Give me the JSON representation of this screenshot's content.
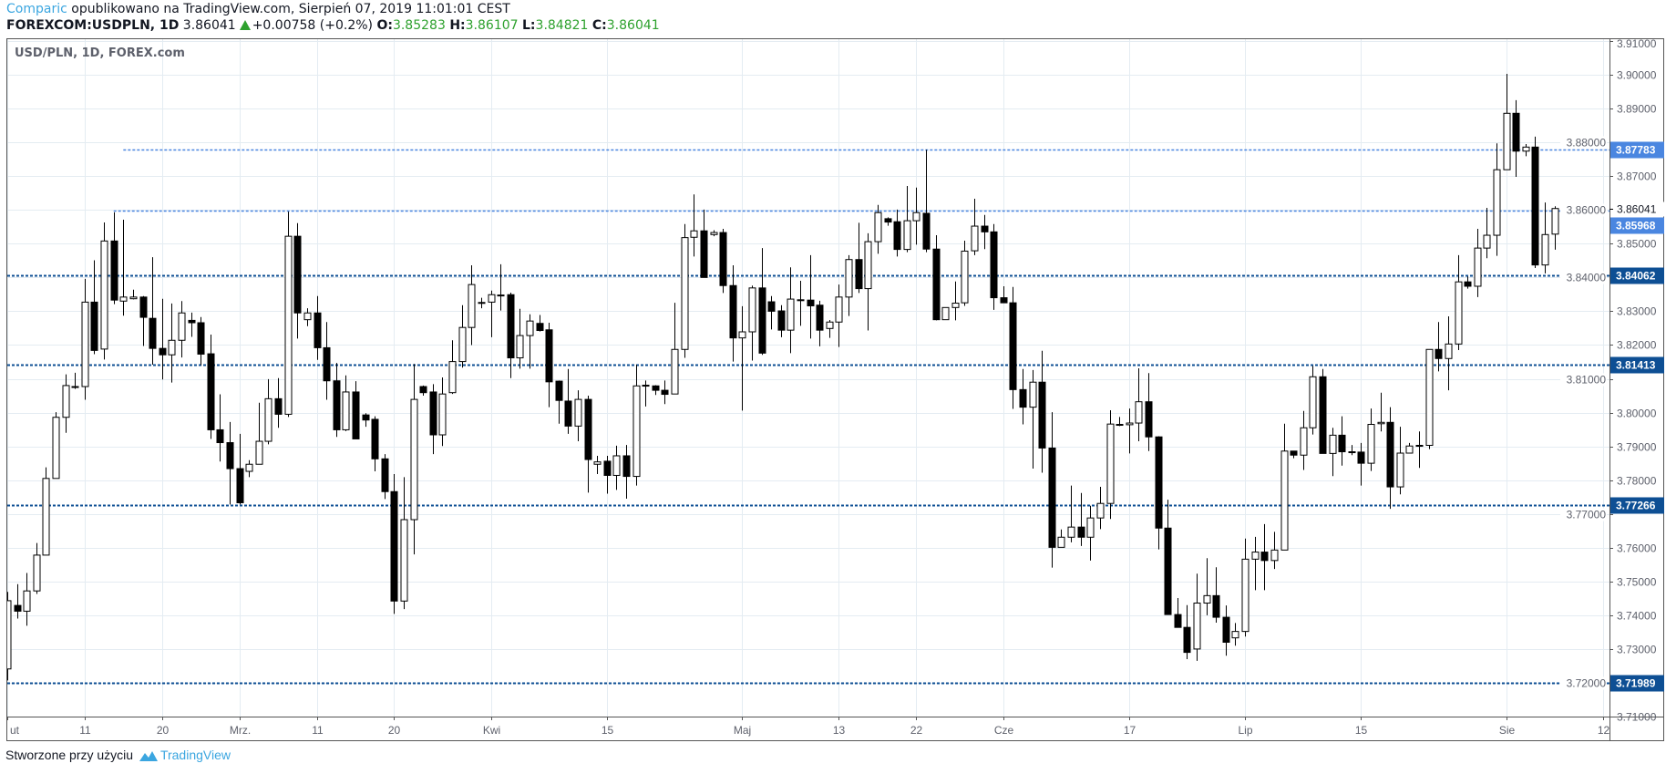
{
  "header": {
    "author": "Comparic",
    "published_text": "opublikowano na TradingView.com, Sierpień 07, 2019 11:01:01 CEST",
    "symbol": "FOREXCOM:USDPLN, 1D",
    "last": "3.86041",
    "change": "+0.00758 (+0.2%)",
    "open_label": "O:",
    "open": "3.85283",
    "high_label": "H:",
    "high": "3.86107",
    "low_label": "L:",
    "low": "3.84821",
    "close_label": "C:",
    "close": "3.86041"
  },
  "legend": "USD/PLN, 1D, FOREX.com",
  "footer": {
    "text": "Stworzone przy użyciu",
    "brand": "TradingView"
  },
  "colors": {
    "up_body": "#ffffff",
    "down_body": "#000000",
    "wick": "#000000",
    "grid": "#e4ecf2",
    "line_light": "#4a86e0",
    "line_dark": "#0e4f94",
    "value_green": "#2ea12e"
  },
  "chart_data": {
    "type": "candlestick",
    "title": "USD/PLN, 1D, FOREX.com",
    "ylim": [
      3.71,
      3.91
    ],
    "grid": true,
    "yticks": [
      "3.91000",
      "3.90000",
      "3.89000",
      "3.88000",
      "3.87000",
      "3.86000",
      "3.85000",
      "3.84000",
      "3.83000",
      "3.82000",
      "3.81000",
      "3.80000",
      "3.79000",
      "3.78000",
      "3.77000",
      "3.76000",
      "3.75000",
      "3.74000",
      "3.73000",
      "3.72000",
      "3.71000"
    ],
    "xticks": [
      {
        "label": "ut",
        "index": 0
      },
      {
        "label": "11",
        "index": 8
      },
      {
        "label": "20",
        "index": 16
      },
      {
        "label": "Mrz.",
        "index": 24
      },
      {
        "label": "11",
        "index": 32
      },
      {
        "label": "20",
        "index": 40
      },
      {
        "label": "Kwi",
        "index": 50
      },
      {
        "label": "15",
        "index": 62
      },
      {
        "label": "Maj",
        "index": 76
      },
      {
        "label": "13",
        "index": 86
      },
      {
        "label": "22",
        "index": 94
      },
      {
        "label": "Cze",
        "index": 103
      },
      {
        "label": "17",
        "index": 116
      },
      {
        "label": "Lip",
        "index": 128
      },
      {
        "label": "15",
        "index": 140
      },
      {
        "label": "Sie",
        "index": 155
      },
      {
        "label": "12",
        "index": 165
      }
    ],
    "horizontal_lines": [
      {
        "value": 3.87783,
        "label": "3.87783",
        "style": "light",
        "start_index": 12
      },
      {
        "value": 3.85968,
        "label": "3.85968",
        "style": "light",
        "start_index": 11
      },
      {
        "value": 3.84062,
        "label": "3.84062",
        "style": "dark",
        "start_index": 0
      },
      {
        "value": 3.81413,
        "label": "3.81413",
        "style": "dark",
        "start_index": 0
      },
      {
        "value": 3.77266,
        "label": "3.77266",
        "style": "dark",
        "start_index": 0
      },
      {
        "value": 3.71989,
        "label": "3.71989",
        "style": "dark",
        "start_index": 0
      }
    ],
    "last_price": {
      "value": 3.86041,
      "label": "3.86041"
    },
    "ohlc_fields": [
      "open",
      "high",
      "low",
      "close"
    ],
    "candles": [
      [
        3.7241,
        3.7469,
        3.7207,
        3.7443
      ],
      [
        3.7429,
        3.7492,
        3.739,
        3.7412
      ],
      [
        3.7412,
        3.7525,
        3.7369,
        3.7472
      ],
      [
        3.7472,
        3.7614,
        3.7463,
        3.7578
      ],
      [
        3.7578,
        3.7838,
        3.7578,
        3.7805
      ],
      [
        3.7805,
        3.8001,
        3.7805,
        3.7986
      ],
      [
        3.7986,
        3.8113,
        3.794,
        3.808
      ],
      [
        3.8077,
        3.8118,
        3.807,
        3.8075
      ],
      [
        3.8077,
        3.8396,
        3.8038,
        3.8327
      ],
      [
        3.8327,
        3.8451,
        3.8173,
        3.8184
      ],
      [
        3.8188,
        3.8563,
        3.8157,
        3.8508
      ],
      [
        3.8508,
        3.8593,
        3.8321,
        3.8333
      ],
      [
        3.833,
        3.8571,
        3.8287,
        3.8342
      ],
      [
        3.8337,
        3.8364,
        3.8335,
        3.8342
      ],
      [
        3.8342,
        3.8345,
        3.8197,
        3.8282
      ],
      [
        3.8279,
        3.846,
        3.8142,
        3.819
      ],
      [
        3.819,
        3.8337,
        3.8098,
        3.8171
      ],
      [
        3.8171,
        3.8323,
        3.8089,
        3.8214
      ],
      [
        3.8214,
        3.833,
        3.8163,
        3.8295
      ],
      [
        3.8273,
        3.8296,
        3.8224,
        3.8266
      ],
      [
        3.8266,
        3.8283,
        3.814,
        3.8173
      ],
      [
        3.8174,
        3.8231,
        3.7922,
        3.7949
      ],
      [
        3.7949,
        3.8054,
        3.7855,
        3.7911
      ],
      [
        3.7911,
        3.7972,
        3.7728,
        3.7834
      ],
      [
        3.7834,
        3.7937,
        3.7728,
        3.7733
      ],
      [
        3.7826,
        3.7859,
        3.7809,
        3.7847
      ],
      [
        3.7847,
        3.8029,
        3.7847,
        3.7915
      ],
      [
        3.7915,
        3.8099,
        3.7906,
        3.8041
      ],
      [
        3.8041,
        3.8102,
        3.7955,
        3.7995
      ],
      [
        3.7995,
        3.8595,
        3.7987,
        3.8522
      ],
      [
        3.8522,
        3.8561,
        3.8219,
        3.8295
      ],
      [
        3.8275,
        3.8309,
        3.8256,
        3.8295
      ],
      [
        3.8295,
        3.8345,
        3.8156,
        3.8192
      ],
      [
        3.8192,
        3.8268,
        3.8038,
        3.8094
      ],
      [
        3.8094,
        3.8147,
        3.7928,
        3.7949
      ],
      [
        3.7949,
        3.811,
        3.7945,
        3.8061
      ],
      [
        3.8061,
        3.8093,
        3.7922,
        3.7922
      ],
      [
        3.7993,
        3.7998,
        3.7958,
        3.7978
      ],
      [
        3.798,
        3.7989,
        3.7826,
        3.7863
      ],
      [
        3.7863,
        3.7877,
        3.7744,
        3.7766
      ],
      [
        3.7766,
        3.7818,
        3.7404,
        3.7442
      ],
      [
        3.7442,
        3.7809,
        3.7418,
        3.7683
      ],
      [
        3.7683,
        3.8144,
        3.758,
        3.8039
      ],
      [
        3.8077,
        3.808,
        3.805,
        3.8059
      ],
      [
        3.8061,
        3.8084,
        3.7877,
        3.7934
      ],
      [
        3.7934,
        3.8104,
        3.7901,
        3.8055
      ],
      [
        3.8059,
        3.8214,
        3.8055,
        3.8151
      ],
      [
        3.8151,
        3.8318,
        3.8133,
        3.8252
      ],
      [
        3.8252,
        3.8436,
        3.82,
        3.8379
      ],
      [
        3.8326,
        3.834,
        3.8309,
        3.8326
      ],
      [
        3.8327,
        3.8361,
        3.8223,
        3.8349
      ],
      [
        3.8348,
        3.8439,
        3.8302,
        3.8346
      ],
      [
        3.8349,
        3.8355,
        3.8102,
        3.8162
      ],
      [
        3.8162,
        3.8307,
        3.813,
        3.8228
      ],
      [
        3.8228,
        3.8291,
        3.813,
        3.8271
      ],
      [
        3.8264,
        3.8289,
        3.824,
        3.8243
      ],
      [
        3.8245,
        3.8266,
        3.8016,
        3.8091
      ],
      [
        3.8093,
        3.8095,
        3.7967,
        3.8036
      ],
      [
        3.8034,
        3.8129,
        3.7937,
        3.796
      ],
      [
        3.796,
        3.8066,
        3.7915,
        3.8039
      ],
      [
        3.8039,
        3.805,
        3.7763,
        3.7861
      ],
      [
        3.7847,
        3.7872,
        3.7818,
        3.7854
      ],
      [
        3.7856,
        3.7872,
        3.776,
        3.7814
      ],
      [
        3.7814,
        3.7902,
        3.7771,
        3.7872
      ],
      [
        3.7872,
        3.7904,
        3.7745,
        3.7811
      ],
      [
        3.7811,
        3.8142,
        3.7784,
        3.8079
      ],
      [
        3.8081,
        3.8095,
        3.8018,
        3.8081
      ],
      [
        3.8079,
        3.8081,
        3.8052,
        3.8066
      ],
      [
        3.8066,
        3.8095,
        3.8025,
        3.8054
      ],
      [
        3.8055,
        3.8325,
        3.8055,
        3.8187
      ],
      [
        3.8187,
        3.8558,
        3.8162,
        3.8518
      ],
      [
        3.8519,
        3.8646,
        3.8462,
        3.8538
      ],
      [
        3.8538,
        3.8601,
        3.84,
        3.84
      ],
      [
        3.8527,
        3.854,
        3.8522,
        3.8533
      ],
      [
        3.8533,
        3.8544,
        3.8354,
        3.8376
      ],
      [
        3.8376,
        3.8436,
        3.8151,
        3.8221
      ],
      [
        3.8221,
        3.8315,
        3.8006,
        3.8239
      ],
      [
        3.8239,
        3.8376,
        3.8154,
        3.8369
      ],
      [
        3.8369,
        3.8487,
        3.8171,
        3.8176
      ],
      [
        3.8328,
        3.8345,
        3.8246,
        3.83
      ],
      [
        3.8301,
        3.8318,
        3.8223,
        3.8244
      ],
      [
        3.8244,
        3.843,
        3.8176,
        3.8336
      ],
      [
        3.8334,
        3.839,
        3.8257,
        3.8334
      ],
      [
        3.8333,
        3.8466,
        3.8219,
        3.8316
      ],
      [
        3.8318,
        3.8331,
        3.8196,
        3.8244
      ],
      [
        3.8249,
        3.8274,
        3.8221,
        3.8268
      ],
      [
        3.8268,
        3.8379,
        3.8194,
        3.8342
      ],
      [
        3.8342,
        3.8466,
        3.8286,
        3.8453
      ],
      [
        3.8453,
        3.8562,
        3.8354,
        3.8367
      ],
      [
        3.8367,
        3.8531,
        3.8243,
        3.8506
      ],
      [
        3.8506,
        3.8615,
        3.847,
        3.8592
      ],
      [
        3.8574,
        3.8578,
        3.8553,
        3.8564
      ],
      [
        3.8565,
        3.8601,
        3.8462,
        3.8483
      ],
      [
        3.8483,
        3.8671,
        3.8475,
        3.8568
      ],
      [
        3.8568,
        3.8666,
        3.8497,
        3.8592
      ],
      [
        3.859,
        3.8778,
        3.8475,
        3.8484
      ],
      [
        3.8484,
        3.8525,
        3.8273,
        3.8275
      ],
      [
        3.8275,
        3.8311,
        3.8275,
        3.8311
      ],
      [
        3.8311,
        3.8388,
        3.8273,
        3.8324
      ],
      [
        3.8325,
        3.8509,
        3.8316,
        3.8478
      ],
      [
        3.8479,
        3.8633,
        3.8466,
        3.8552
      ],
      [
        3.8552,
        3.8585,
        3.8484,
        3.8535
      ],
      [
        3.8535,
        3.8558,
        3.8304,
        3.834
      ],
      [
        3.834,
        3.8374,
        3.8325,
        3.8325
      ],
      [
        3.8325,
        3.8372,
        3.8011,
        3.8068
      ],
      [
        3.8068,
        3.8129,
        3.7965,
        3.8016
      ],
      [
        3.8016,
        3.8126,
        3.7834,
        3.809
      ],
      [
        3.809,
        3.8183,
        3.7822,
        3.7895
      ],
      [
        3.7895,
        3.8001,
        3.7541,
        3.7601
      ],
      [
        3.7601,
        3.7654,
        3.7601,
        3.7631
      ],
      [
        3.7631,
        3.7784,
        3.7616,
        3.7661
      ],
      [
        3.7661,
        3.7762,
        3.7605,
        3.7631
      ],
      [
        3.7631,
        3.7724,
        3.7562,
        3.7688
      ],
      [
        3.7688,
        3.778,
        3.7655,
        3.7731
      ],
      [
        3.7731,
        3.8007,
        3.7685,
        3.7966
      ],
      [
        3.7965,
        3.7987,
        3.796,
        3.7963
      ],
      [
        3.7964,
        3.8012,
        3.7879,
        3.7969
      ],
      [
        3.7969,
        3.8131,
        3.7915,
        3.8032
      ],
      [
        3.8032,
        3.8117,
        3.7886,
        3.7928
      ],
      [
        3.7928,
        3.793,
        3.7595,
        3.7658
      ],
      [
        3.7658,
        3.7742,
        3.7402,
        3.7402
      ],
      [
        3.7402,
        3.7451,
        3.7364,
        3.7364
      ],
      [
        3.7364,
        3.743,
        3.727,
        3.729
      ],
      [
        3.73,
        3.7523,
        3.7265,
        3.7436
      ],
      [
        3.7436,
        3.7569,
        3.74,
        3.7458
      ],
      [
        3.7458,
        3.7542,
        3.7378,
        3.7394
      ],
      [
        3.7394,
        3.7429,
        3.728,
        3.732
      ],
      [
        3.7333,
        3.7377,
        3.731,
        3.7352
      ],
      [
        3.7352,
        3.7627,
        3.7337,
        3.7566
      ],
      [
        3.7566,
        3.7632,
        3.7474,
        3.7587
      ],
      [
        3.7587,
        3.767,
        3.7474,
        3.7562
      ],
      [
        3.7562,
        3.7647,
        3.7537,
        3.7593
      ],
      [
        3.7593,
        3.7967,
        3.7593,
        3.7886
      ],
      [
        3.7886,
        3.7886,
        3.7865,
        3.7874
      ],
      [
        3.7874,
        3.8005,
        3.783,
        3.7955
      ],
      [
        3.7955,
        3.8138,
        3.7935,
        3.8106
      ],
      [
        3.8106,
        3.8129,
        3.7879,
        3.7879
      ],
      [
        3.7879,
        3.7955,
        3.7812,
        3.7933
      ],
      [
        3.7933,
        3.7989,
        3.7843,
        3.7884
      ],
      [
        3.7884,
        3.7904,
        3.7874,
        3.7884
      ],
      [
        3.7883,
        3.791,
        3.7784,
        3.785
      ],
      [
        3.785,
        3.8012,
        3.7827,
        3.7965
      ],
      [
        3.7967,
        3.8059,
        3.7944,
        3.7971
      ],
      [
        3.7971,
        3.8016,
        3.7715,
        3.778
      ],
      [
        3.778,
        3.7958,
        3.7758,
        3.788
      ],
      [
        3.788,
        3.791,
        3.788,
        3.7901
      ],
      [
        3.7901,
        3.7944,
        3.7836,
        3.7903
      ],
      [
        3.7903,
        3.8187,
        3.7892,
        3.8187
      ],
      [
        3.8187,
        3.8268,
        3.8122,
        3.816
      ],
      [
        3.816,
        3.8285,
        3.8066,
        3.8203
      ],
      [
        3.8203,
        3.8466,
        3.8185,
        3.8387
      ],
      [
        3.8387,
        3.8403,
        3.8367,
        3.8374
      ],
      [
        3.8374,
        3.8544,
        3.8342,
        3.8487
      ],
      [
        3.8487,
        3.8606,
        3.8457,
        3.8525
      ],
      [
        3.8525,
        3.8797,
        3.8464,
        3.8719
      ],
      [
        3.8719,
        3.9003,
        3.8719,
        3.8886
      ],
      [
        3.8886,
        3.8925,
        3.8698,
        3.8774
      ],
      [
        3.8774,
        3.8795,
        3.8759,
        3.8786
      ],
      [
        3.8786,
        3.8817,
        3.8428,
        3.8437
      ],
      [
        3.8437,
        3.8622,
        3.8412,
        3.8527
      ],
      [
        3.85283,
        3.86107,
        3.84821,
        3.86041
      ]
    ]
  }
}
